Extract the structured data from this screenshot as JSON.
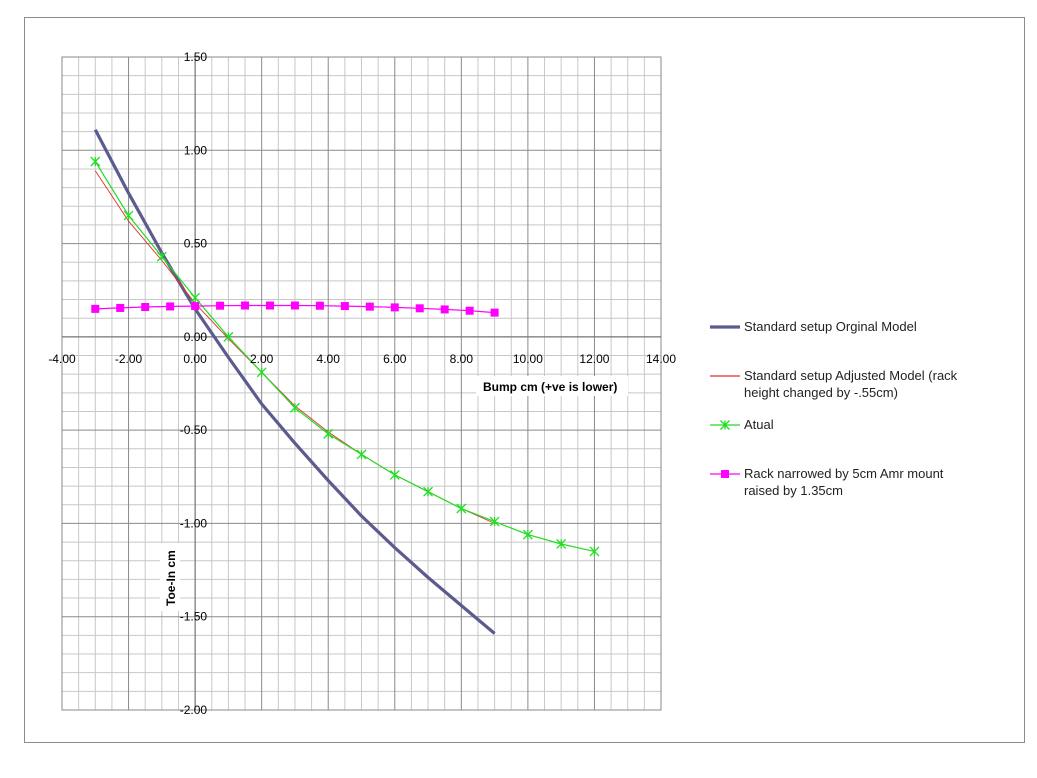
{
  "chart_data": {
    "type": "line",
    "title": "",
    "xlabel": "Bump cm (+ve is lower)",
    "ylabel": "Toe-In cm",
    "xlim": [
      -4,
      14
    ],
    "ylim": [
      -2,
      1.5
    ],
    "x_ticks": [
      "-4.00",
      "-2.00",
      "0.00",
      "2.00",
      "4.00",
      "6.00",
      "8.00",
      "10.00",
      "12.00",
      "14.00"
    ],
    "y_ticks": [
      "1.50",
      "1.00",
      "0.50",
      "0.00",
      "-0.50",
      "-1.00",
      "-1.50",
      "-2.00"
    ],
    "grid": true,
    "legend_position": "right",
    "series": [
      {
        "name": "Standard setup Orginal Model",
        "color": "#5b5b8f",
        "marker": "none",
        "x": [
          -3,
          -2,
          -1,
          0,
          1,
          2,
          3,
          4,
          5,
          6,
          7,
          8,
          9
        ],
        "y": [
          1.11,
          0.77,
          0.45,
          0.15,
          -0.11,
          -0.36,
          -0.57,
          -0.77,
          -0.96,
          -1.13,
          -1.29,
          -1.44,
          -1.59
        ]
      },
      {
        "name": "Standard setup Adjusted Model (rack height changed by -.55cm)",
        "color": "#e03030",
        "marker": "none",
        "x": [
          -3,
          -2,
          -1,
          0,
          1,
          2,
          3,
          4,
          5,
          6,
          7,
          8,
          9
        ],
        "y": [
          0.89,
          0.62,
          0.41,
          0.18,
          -0.01,
          -0.19,
          -0.37,
          -0.51,
          -0.63,
          -0.74,
          -0.83,
          -0.92,
          -1.0
        ]
      },
      {
        "name": "Atual",
        "color": "#22dd22",
        "marker": "asterisk",
        "x": [
          -3,
          -2,
          -1,
          0,
          1,
          2,
          3,
          4,
          5,
          6,
          7,
          8,
          9,
          10,
          11,
          12
        ],
        "y": [
          0.94,
          0.65,
          0.43,
          0.21,
          0.0,
          -0.19,
          -0.38,
          -0.52,
          -0.63,
          -0.74,
          -0.83,
          -0.92,
          -0.99,
          -1.06,
          -1.11,
          -1.15
        ]
      },
      {
        "name": "Rack narrowed by 5cm Amr mount raised by 1.35cm",
        "color": "#ff00ff",
        "marker": "square",
        "x": [
          -3,
          -2.25,
          -1.5,
          -0.75,
          0,
          0.75,
          1.5,
          2.25,
          3,
          3.75,
          4.5,
          5.25,
          6,
          6.75,
          7.5,
          8.25,
          9
        ],
        "y": [
          0.15,
          0.155,
          0.16,
          0.163,
          0.165,
          0.167,
          0.168,
          0.168,
          0.168,
          0.167,
          0.165,
          0.162,
          0.158,
          0.153,
          0.147,
          0.14,
          0.13
        ]
      }
    ],
    "legend": [
      {
        "lines": [
          "Standard setup Orginal Model"
        ]
      },
      {
        "lines": [
          "Standard setup Adjusted Model (rack",
          "height changed by -.55cm)"
        ]
      },
      {
        "lines": [
          "Atual"
        ]
      },
      {
        "lines": [
          "Rack narrowed by 5cm Amr mount",
          "raised by 1.35cm"
        ]
      }
    ]
  }
}
